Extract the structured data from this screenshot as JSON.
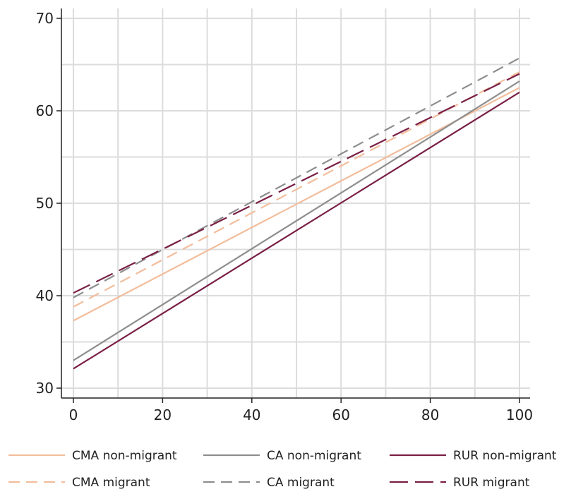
{
  "chart_data": {
    "type": "line",
    "title": "",
    "xlabel": "",
    "ylabel": "",
    "xlim": [
      0,
      100
    ],
    "ylim": [
      30,
      70
    ],
    "x_ticks": [
      0,
      20,
      40,
      60,
      80,
      100
    ],
    "y_ticks": [
      30,
      40,
      50,
      60,
      70
    ],
    "grid": true,
    "legend_position": "bottom",
    "x": [
      0,
      100
    ],
    "series": [
      {
        "name": "CMA non-migrant",
        "values": [
          37.3,
          62.5
        ],
        "color": "#f2bd9c",
        "dash": "solid"
      },
      {
        "name": "CA non-migrant",
        "values": [
          33.0,
          63.2
        ],
        "color": "#8e8e8e",
        "dash": "solid"
      },
      {
        "name": "RUR non-migrant",
        "values": [
          32.1,
          62.0
        ],
        "color": "#7a1f45",
        "dash": "solid"
      },
      {
        "name": "CMA migrant",
        "values": [
          38.8,
          64.2
        ],
        "color": "#f2bd9c",
        "dash": "dashed"
      },
      {
        "name": "CA migrant",
        "values": [
          39.8,
          65.7
        ],
        "color": "#8e8e8e",
        "dash": "dashed"
      },
      {
        "name": "RUR migrant",
        "values": [
          40.3,
          64.0
        ],
        "color": "#7a1f45",
        "dash": "longdash"
      }
    ]
  }
}
